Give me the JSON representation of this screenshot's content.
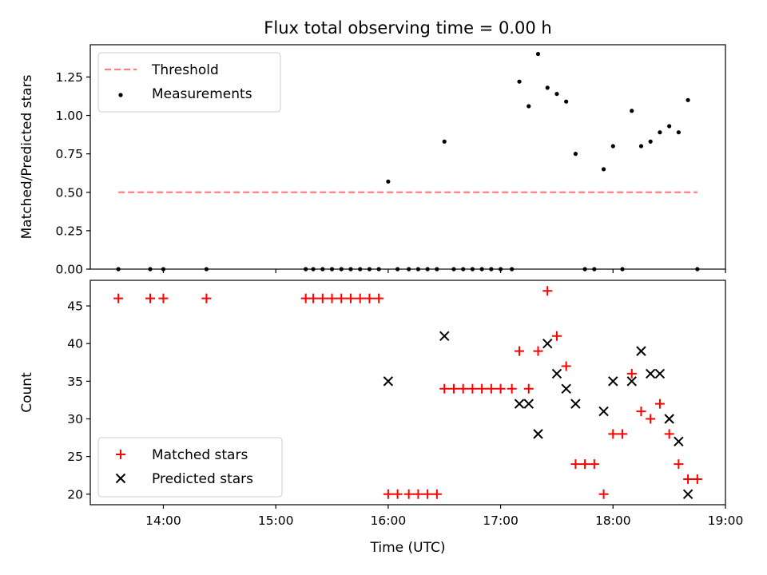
{
  "chart_data": [
    {
      "type": "scatter",
      "title": "Flux total observing time = 0.00 h",
      "xlabel": "",
      "ylabel": "Matched/Predicted stars",
      "ylim": [
        0,
        1.46
      ],
      "yticks": [
        0,
        0.25,
        0.5,
        0.75,
        1.0,
        1.25
      ],
      "ytick_labels": [
        "0.00",
        "0.25",
        "0.50",
        "0.75",
        "1.00",
        "1.25"
      ],
      "xlim": [
        "13:21",
        "19:00"
      ],
      "xticks": [
        "14:00",
        "15:00",
        "16:00",
        "17:00",
        "18:00",
        "19:00"
      ],
      "legend_position": "top-left",
      "threshold": {
        "name": "Threshold",
        "value": 0.5,
        "x_start": "13:36",
        "x_end": "18:45",
        "color": "#ff7f7f"
      },
      "series": [
        {
          "name": "Measurements",
          "color": "#000000",
          "marker": "dot",
          "points": [
            [
              "13:36",
              0
            ],
            [
              "13:53",
              0
            ],
            [
              "14:00",
              0
            ],
            [
              "14:23",
              0
            ],
            [
              "15:16",
              0
            ],
            [
              "15:20",
              0
            ],
            [
              "15:25",
              0
            ],
            [
              "15:30",
              0
            ],
            [
              "15:35",
              0
            ],
            [
              "15:40",
              0
            ],
            [
              "15:45",
              0
            ],
            [
              "15:50",
              0
            ],
            [
              "15:55",
              0
            ],
            [
              "16:00",
              0.57
            ],
            [
              "16:05",
              0
            ],
            [
              "16:11",
              0
            ],
            [
              "16:16",
              0
            ],
            [
              "16:21",
              0
            ],
            [
              "16:26",
              0
            ],
            [
              "16:30",
              0.83
            ],
            [
              "16:35",
              0
            ],
            [
              "16:40",
              0
            ],
            [
              "16:45",
              0
            ],
            [
              "16:50",
              0
            ],
            [
              "16:55",
              0
            ],
            [
              "17:00",
              0
            ],
            [
              "17:06",
              0
            ],
            [
              "17:10",
              1.22
            ],
            [
              "17:15",
              1.06
            ],
            [
              "17:20",
              1.4
            ],
            [
              "17:25",
              1.18
            ],
            [
              "17:30",
              1.14
            ],
            [
              "17:35",
              1.09
            ],
            [
              "17:40",
              0.75
            ],
            [
              "17:45",
              0
            ],
            [
              "17:50",
              0
            ],
            [
              "17:55",
              0.65
            ],
            [
              "18:00",
              0.8
            ],
            [
              "18:05",
              0
            ],
            [
              "18:10",
              1.03
            ],
            [
              "18:15",
              0.8
            ],
            [
              "18:20",
              0.83
            ],
            [
              "18:25",
              0.89
            ],
            [
              "18:30",
              0.93
            ],
            [
              "18:35",
              0.89
            ],
            [
              "18:40",
              1.1
            ],
            [
              "18:45",
              0
            ]
          ]
        }
      ]
    },
    {
      "type": "scatter",
      "title": "",
      "xlabel": "Time (UTC)",
      "ylabel": "Count",
      "ylim": [
        18.6,
        48.4
      ],
      "yticks": [
        20,
        25,
        30,
        35,
        40,
        45
      ],
      "ytick_labels": [
        "20",
        "25",
        "30",
        "35",
        "40",
        "45"
      ],
      "xlim": [
        "13:21",
        "19:00"
      ],
      "xticks": [
        "14:00",
        "15:00",
        "16:00",
        "17:00",
        "18:00",
        "19:00"
      ],
      "xtick_labels": [
        "14:00",
        "15:00",
        "16:00",
        "17:00",
        "18:00",
        "19:00"
      ],
      "legend_position": "bottom-left",
      "series": [
        {
          "name": "Matched stars",
          "color": "#ff0000",
          "marker": "plus",
          "points": [
            [
              "13:36",
              46
            ],
            [
              "13:53",
              46
            ],
            [
              "14:00",
              46
            ],
            [
              "14:23",
              46
            ],
            [
              "15:16",
              46
            ],
            [
              "15:20",
              46
            ],
            [
              "15:25",
              46
            ],
            [
              "15:30",
              46
            ],
            [
              "15:35",
              46
            ],
            [
              "15:40",
              46
            ],
            [
              "15:45",
              46
            ],
            [
              "15:50",
              46
            ],
            [
              "15:55",
              46
            ],
            [
              "16:00",
              20
            ],
            [
              "16:05",
              20
            ],
            [
              "16:11",
              20
            ],
            [
              "16:16",
              20
            ],
            [
              "16:21",
              20
            ],
            [
              "16:26",
              20
            ],
            [
              "16:30",
              34
            ],
            [
              "16:35",
              34
            ],
            [
              "16:40",
              34
            ],
            [
              "16:45",
              34
            ],
            [
              "16:50",
              34
            ],
            [
              "16:55",
              34
            ],
            [
              "17:00",
              34
            ],
            [
              "17:06",
              34
            ],
            [
              "17:10",
              39
            ],
            [
              "17:15",
              34
            ],
            [
              "17:20",
              39
            ],
            [
              "17:25",
              47
            ],
            [
              "17:30",
              41
            ],
            [
              "17:35",
              37
            ],
            [
              "17:40",
              24
            ],
            [
              "17:45",
              24
            ],
            [
              "17:50",
              24
            ],
            [
              "17:55",
              20
            ],
            [
              "18:00",
              28
            ],
            [
              "18:05",
              28
            ],
            [
              "18:10",
              36
            ],
            [
              "18:15",
              31
            ],
            [
              "18:20",
              30
            ],
            [
              "18:25",
              32
            ],
            [
              "18:30",
              28
            ],
            [
              "18:35",
              24
            ],
            [
              "18:40",
              22
            ],
            [
              "18:45",
              22
            ]
          ]
        },
        {
          "name": "Predicted stars",
          "color": "#000000",
          "marker": "x",
          "points": [
            [
              "16:00",
              35
            ],
            [
              "16:30",
              41
            ],
            [
              "17:10",
              32
            ],
            [
              "17:15",
              32
            ],
            [
              "17:20",
              28
            ],
            [
              "17:25",
              40
            ],
            [
              "17:30",
              36
            ],
            [
              "17:35",
              34
            ],
            [
              "17:40",
              32
            ],
            [
              "17:55",
              31
            ],
            [
              "18:00",
              35
            ],
            [
              "18:10",
              35
            ],
            [
              "18:15",
              39
            ],
            [
              "18:20",
              36
            ],
            [
              "18:25",
              36
            ],
            [
              "18:30",
              30
            ],
            [
              "18:35",
              27
            ],
            [
              "18:40",
              20
            ]
          ]
        }
      ]
    }
  ]
}
